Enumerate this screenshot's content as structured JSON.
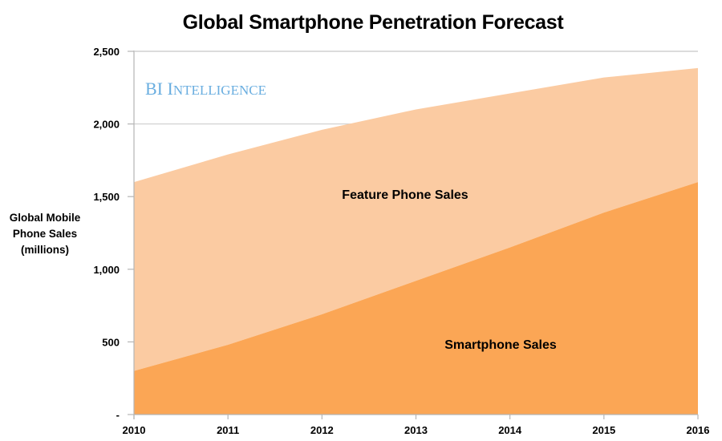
{
  "chart_data": {
    "type": "area",
    "stacked": true,
    "title": "Global Smartphone Penetration Forecast",
    "xlabel": "",
    "ylabel": [
      "Global Mobile",
      "Phone Sales",
      "(millions)"
    ],
    "categories": [
      "2010",
      "2011",
      "2012",
      "2013",
      "2014",
      "2015",
      "2016"
    ],
    "ylim": [
      0,
      2500
    ],
    "yticks": [
      0,
      500,
      1000,
      1500,
      2000,
      2500
    ],
    "ytick_labels": [
      "-",
      "500",
      "1,000",
      "1,500",
      "2,000",
      "2,500"
    ],
    "grid": false,
    "series": [
      {
        "name": "Smartphone Sales",
        "color": "#fba655",
        "values": [
          300,
          480,
          690,
          920,
          1150,
          1390,
          1600
        ]
      },
      {
        "name": "Feature Phone Sales",
        "color": "#fbcba2",
        "values": [
          1300,
          1310,
          1270,
          1180,
          1060,
          930,
          785
        ]
      }
    ],
    "annotations": [
      {
        "text": "Feature Phone Sales",
        "series": "Feature Phone Sales"
      },
      {
        "text": "Smartphone Sales",
        "series": "Smartphone Sales"
      }
    ],
    "watermark": {
      "text_first": "BI ",
      "text_cap": "I",
      "text_rest": "NTELLIGENCE",
      "color": "#6aaee0"
    },
    "legend": "none"
  }
}
